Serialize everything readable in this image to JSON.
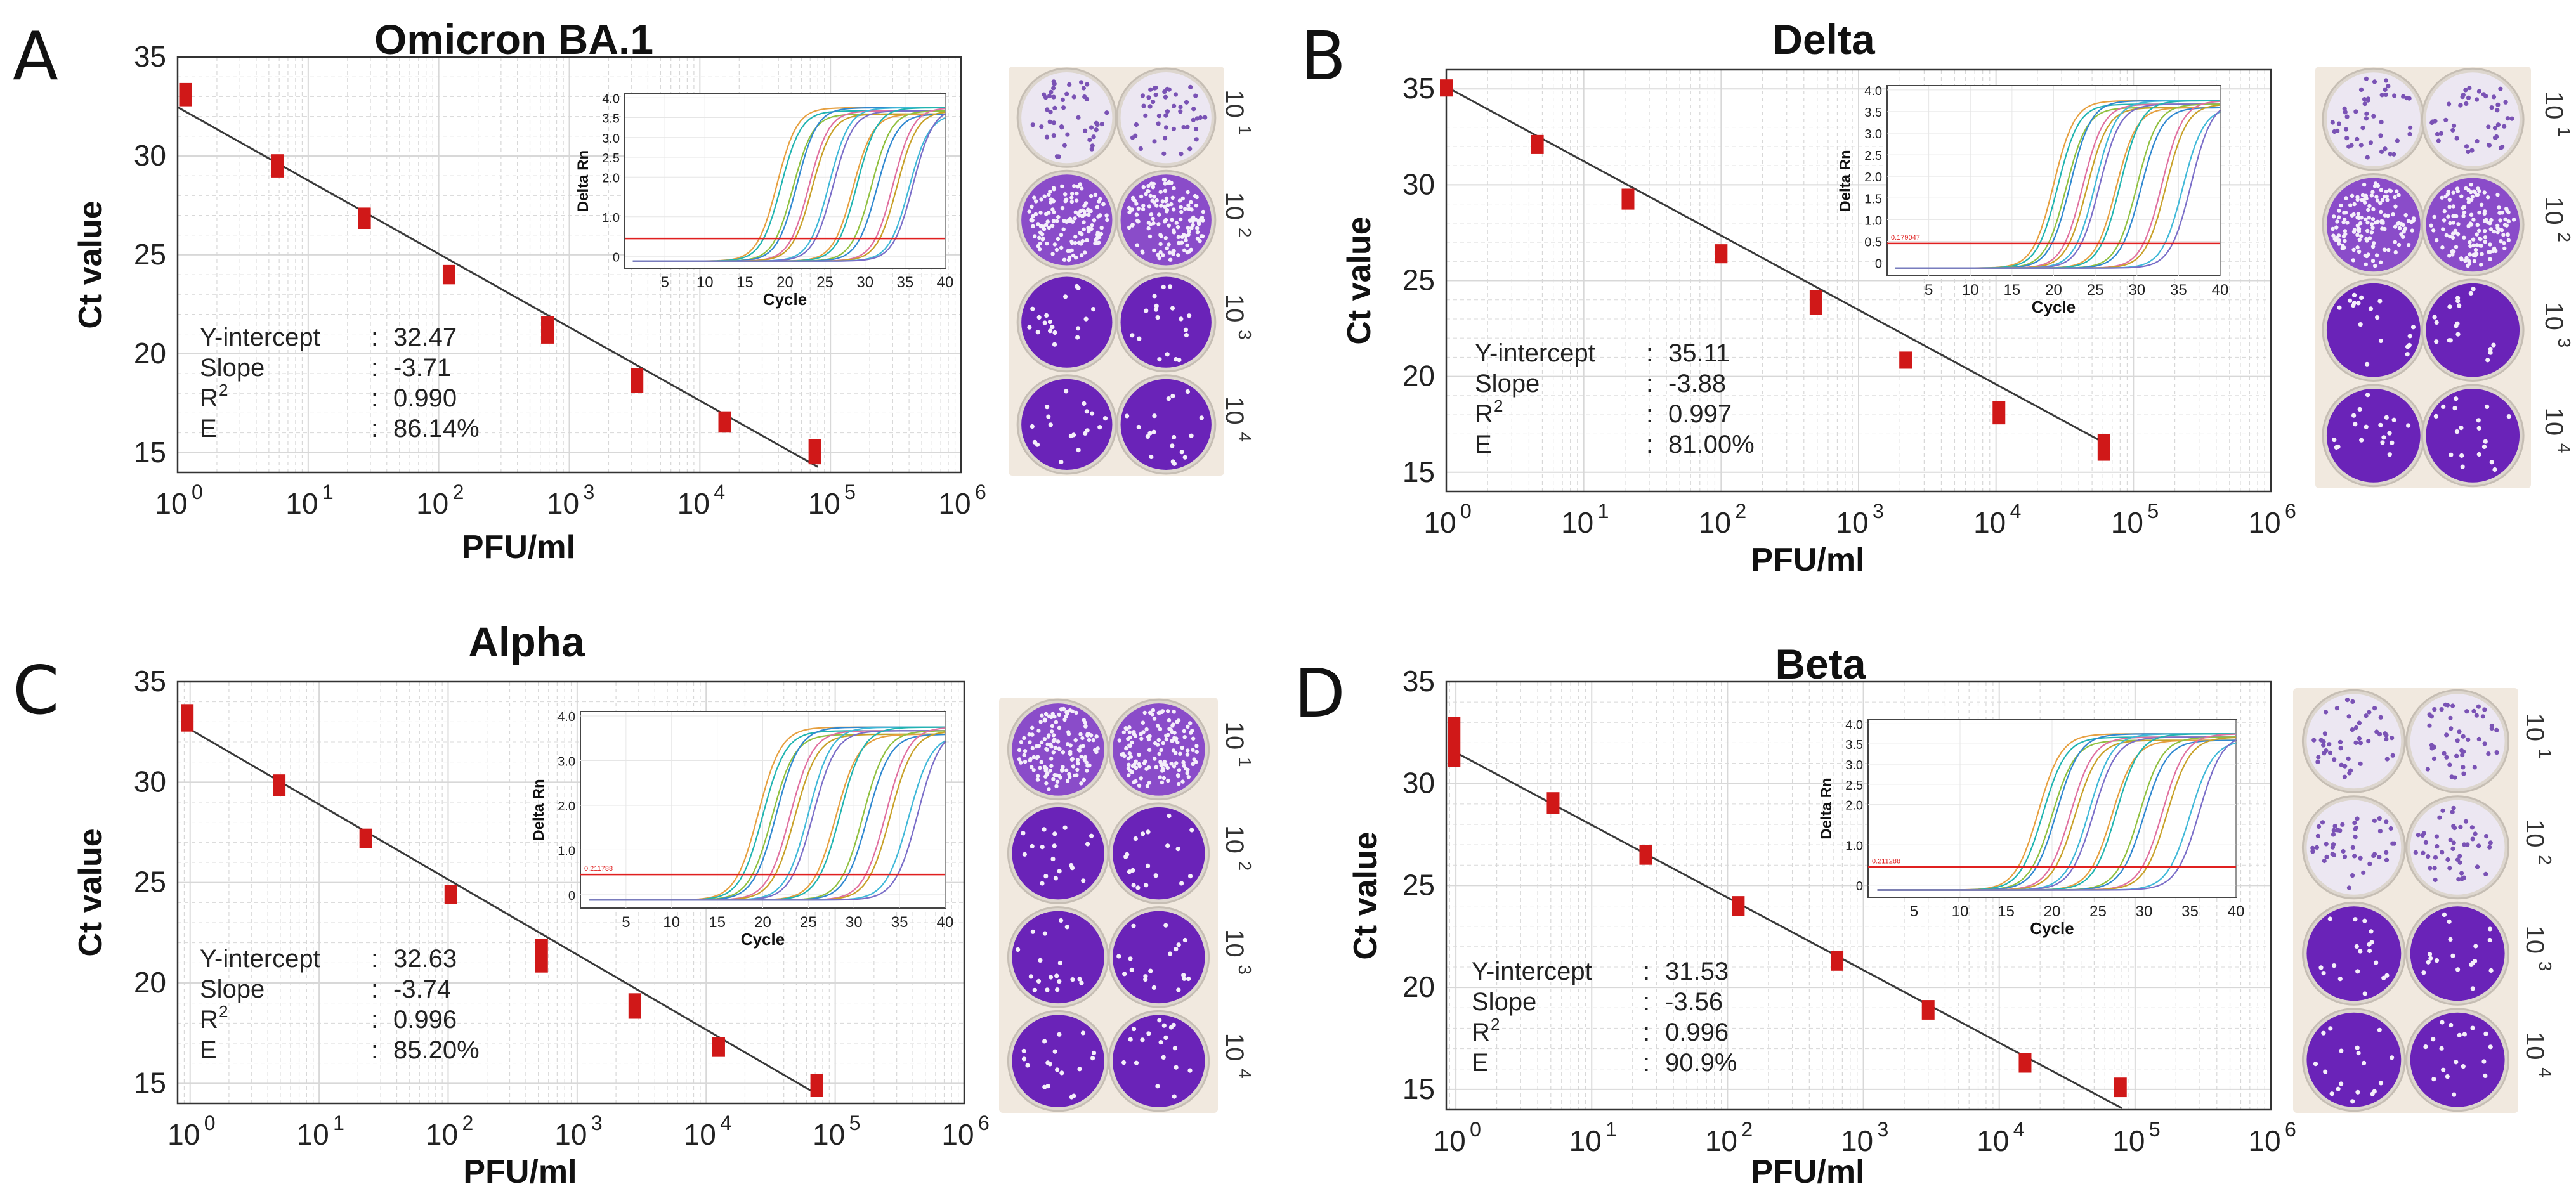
{
  "colors": {
    "fit_line": "#3a3a3a",
    "marker": "#d01818",
    "threshold": "#e02020",
    "grid": "#d8d8d8",
    "plate_bg": "#f1e9df",
    "well_purple": "#6a23b8",
    "well_light": "#ece7f2",
    "amp_curves": [
      "#e6a040",
      "#20b4b0",
      "#90c040",
      "#3088d0",
      "#e070a0",
      "#c8a028",
      "#40b8d8",
      "#7a6ec8"
    ]
  },
  "chart_data": [
    {
      "type": "scatter",
      "panel": "A",
      "title": "Omicron BA.1",
      "xlabel": "PFU/ml",
      "ylabel": "Ct value",
      "xscale": "log10",
      "xlim": [
        1,
        1000000
      ],
      "ylim": [
        14,
        35
      ],
      "y_ticks": [
        "35",
        "30",
        "25",
        "20",
        "15"
      ],
      "x_ticks": [
        {
          "base": "10",
          "exp": "0"
        },
        {
          "base": "10",
          "exp": "1"
        },
        {
          "base": "10",
          "exp": "2"
        },
        {
          "base": "10",
          "exp": "3"
        },
        {
          "base": "10",
          "exp": "4"
        },
        {
          "base": "10",
          "exp": "5"
        },
        {
          "base": "10",
          "exp": "6"
        }
      ],
      "x": [
        1.15,
        5.8,
        27,
        120,
        680,
        3300,
        15500,
        76000
      ],
      "y_pairs": [
        [
          32.8,
          33.4
        ],
        [
          29.2,
          29.8
        ],
        [
          26.6,
          27.1
        ],
        [
          23.8,
          24.2
        ],
        [
          20.8,
          21.6
        ],
        [
          18.3,
          19.0
        ],
        [
          16.3,
          16.8
        ],
        [
          14.7,
          15.4
        ]
      ],
      "fit": {
        "y_intercept": 32.47,
        "slope": -3.71,
        "x_range": [
          1,
          80000
        ]
      },
      "stats": [
        {
          "label": "Y-intercept",
          "sep": ":",
          "value": "32.47"
        },
        {
          "label": "Slope",
          "sep": ":",
          "value": "-3.71"
        },
        {
          "label": "R",
          "sup": "2",
          "sep": ":",
          "value": "0.990"
        },
        {
          "label": "E",
          "sep": ":",
          "value": "86.14%"
        }
      ],
      "inset": {
        "ylabel": "Delta Rn",
        "xlabel": "Cycle",
        "xlim": [
          0,
          40
        ],
        "ylim": [
          -0.3,
          4.1
        ],
        "x_ticks": [
          "5",
          "10",
          "15",
          "20",
          "25",
          "30",
          "35",
          "40"
        ],
        "y_ticks": [
          "0",
          "1.0",
          "2.0",
          "2.5",
          "3.0",
          "3.5",
          "4.0"
        ],
        "threshold": 0.45,
        "threshold_label": "",
        "curve_midpoints": [
          19,
          19.5,
          21,
          21.5,
          23,
          23.4,
          25.5,
          26,
          28.5,
          29,
          30.8,
          31.5,
          33.5,
          34,
          35.5,
          36
        ],
        "plateau": 3.75
      },
      "plate": {
        "exponents": [
          "1",
          "2",
          "3",
          "4"
        ],
        "base": "10",
        "well_styles": [
          "light",
          "dense",
          "purple",
          "purple"
        ]
      }
    },
    {
      "type": "scatter",
      "panel": "B",
      "title": "Delta",
      "xlabel": "PFU/ml",
      "ylabel": "Ct value",
      "xscale": "log10",
      "xlim": [
        1,
        1000000
      ],
      "ylim": [
        14,
        36
      ],
      "y_ticks": [
        "35",
        "30",
        "25",
        "20",
        "15"
      ],
      "x_ticks": [
        {
          "base": "10",
          "exp": "0"
        },
        {
          "base": "10",
          "exp": "1"
        },
        {
          "base": "10",
          "exp": "2"
        },
        {
          "base": "10",
          "exp": "3"
        },
        {
          "base": "10",
          "exp": "4"
        },
        {
          "base": "10",
          "exp": "5"
        },
        {
          "base": "10",
          "exp": "6"
        }
      ],
      "x": [
        1.0,
        4.6,
        21,
        100,
        490,
        2200,
        10500,
        61000
      ],
      "y_pairs": [
        [
          34.9,
          35.2
        ],
        [
          31.9,
          32.3
        ],
        [
          29.0,
          29.5
        ],
        [
          26.2,
          26.6
        ],
        [
          23.5,
          24.2
        ],
        [
          20.7,
          21.0
        ],
        [
          17.8,
          18.4
        ],
        [
          15.9,
          16.7
        ]
      ],
      "fit": {
        "y_intercept": 35.11,
        "slope": -3.88,
        "x_range": [
          1,
          62000
        ]
      },
      "stats": [
        {
          "label": "Y-intercept",
          "sep": ":",
          "value": "35.11"
        },
        {
          "label": "Slope",
          "sep": ":",
          "value": "-3.88"
        },
        {
          "label": "R",
          "sup": "2",
          "sep": ":",
          "value": "0.997"
        },
        {
          "label": "E",
          "sep": ":",
          "value": "81.00%"
        }
      ],
      "inset": {
        "ylabel": "Delta Rn",
        "xlabel": "Cycle",
        "xlim": [
          0,
          40
        ],
        "ylim": [
          -0.3,
          4.1
        ],
        "x_ticks": [
          "5",
          "10",
          "15",
          "20",
          "25",
          "30",
          "35",
          "40"
        ],
        "y_ticks": [
          "0",
          "0.5",
          "1.0",
          "1.5",
          "2.0",
          "2.5",
          "3.0",
          "3.5",
          "4.0"
        ],
        "threshold": 0.45,
        "threshold_label": "0.179047",
        "curve_midpoints": [
          20,
          20.5,
          21.5,
          22,
          23.5,
          24,
          25,
          25.5,
          27.5,
          28,
          30,
          30.5,
          33,
          33.5,
          35.5,
          36.5
        ],
        "plateau": 3.75
      },
      "plate": {
        "exponents": [
          "1",
          "2",
          "3",
          "4"
        ],
        "base": "10",
        "well_styles": [
          "light",
          "dense",
          "purple",
          "purple"
        ]
      }
    },
    {
      "type": "scatter",
      "panel": "C",
      "title": "Alpha",
      "xlabel": "PFU/ml",
      "ylabel": "Ct value",
      "xscale": "log10",
      "xlim": [
        0.8,
        1000000
      ],
      "ylim": [
        14,
        35
      ],
      "y_ticks": [
        "35",
        "30",
        "25",
        "20",
        "15"
      ],
      "x_ticks": [
        {
          "base": "10",
          "exp": "0"
        },
        {
          "base": "10",
          "exp": "1"
        },
        {
          "base": "10",
          "exp": "2"
        },
        {
          "base": "10",
          "exp": "3"
        },
        {
          "base": "10",
          "exp": "4"
        },
        {
          "base": "10",
          "exp": "5"
        },
        {
          "base": "10",
          "exp": "6"
        }
      ],
      "x": [
        0.95,
        4.9,
        23,
        105,
        530,
        2800,
        12500,
        72000
      ],
      "y_pairs": [
        [
          32.8,
          33.6
        ],
        [
          29.6,
          30.1
        ],
        [
          27.0,
          27.4
        ],
        [
          24.2,
          24.6
        ],
        [
          20.8,
          21.9
        ],
        [
          18.5,
          19.2
        ],
        [
          16.6,
          17.0
        ],
        [
          14.6,
          15.2
        ]
      ],
      "fit": {
        "y_intercept": 32.63,
        "slope": -3.74,
        "x_range": [
          0.9,
          75000
        ]
      },
      "stats": [
        {
          "label": "Y-intercept",
          "sep": ":",
          "value": "32.63"
        },
        {
          "label": "Slope",
          "sep": ":",
          "value": "-3.74"
        },
        {
          "label": "R",
          "sup": "2",
          "sep": ":",
          "value": "0.996"
        },
        {
          "label": "E",
          "sep": ":",
          "value": "85.20%"
        }
      ],
      "inset": {
        "ylabel": "Delta Rn",
        "xlabel": "Cycle",
        "xlim": [
          0,
          40
        ],
        "ylim": [
          -0.3,
          4.1
        ],
        "x_ticks": [
          "5",
          "10",
          "15",
          "20",
          "25",
          "30",
          "35",
          "40"
        ],
        "y_ticks": [
          "0",
          "1.0",
          "2.0",
          "3.0",
          "4.0"
        ],
        "threshold": 0.45,
        "threshold_label": "0.211788",
        "curve_midpoints": [
          19.5,
          20,
          21,
          21.5,
          23,
          23.5,
          25,
          25.5,
          28,
          28.5,
          31,
          31.5,
          33.5,
          34,
          36,
          37
        ],
        "plateau": 3.75
      },
      "plate": {
        "exponents": [
          "1",
          "2",
          "3",
          "4"
        ],
        "base": "10",
        "well_styles": [
          "dense",
          "purple",
          "purple",
          "purple"
        ]
      }
    },
    {
      "type": "scatter",
      "panel": "D",
      "title": "Beta",
      "xlabel": "PFU/ml",
      "ylabel": "Ct value",
      "xscale": "log10",
      "xlim": [
        0.85,
        1000000
      ],
      "ylim": [
        14,
        35
      ],
      "y_ticks": [
        "35",
        "30",
        "25",
        "20",
        "15"
      ],
      "x_ticks": [
        {
          "base": "10",
          "exp": "0"
        },
        {
          "base": "10",
          "exp": "1"
        },
        {
          "base": "10",
          "exp": "2"
        },
        {
          "base": "10",
          "exp": "3"
        },
        {
          "base": "10",
          "exp": "4"
        },
        {
          "base": "10",
          "exp": "5"
        },
        {
          "base": "10",
          "exp": "6"
        }
      ],
      "x": [
        0.97,
        5.2,
        25,
        120,
        640,
        3000,
        15500,
        78000
      ],
      "y_pairs": [
        [
          31.1,
          33.0
        ],
        [
          28.8,
          29.3
        ],
        [
          26.3,
          26.7
        ],
        [
          23.8,
          24.2
        ],
        [
          21.1,
          21.5
        ],
        [
          18.7,
          19.1
        ],
        [
          16.1,
          16.5
        ],
        [
          14.9,
          15.3
        ]
      ],
      "fit": {
        "y_intercept": 31.53,
        "slope": -3.56,
        "x_range": [
          0.9,
          80000
        ]
      },
      "stats": [
        {
          "label": "Y-intercept",
          "sep": ":",
          "value": "31.53"
        },
        {
          "label": "Slope",
          "sep": ":",
          "value": "-3.56"
        },
        {
          "label": "R",
          "sup": "2",
          "sep": ":",
          "value": "0.996"
        },
        {
          "label": "E",
          "sep": ":",
          "value": "90.9%"
        }
      ],
      "inset": {
        "ylabel": "Delta Rn",
        "xlabel": "Cycle",
        "xlim": [
          0,
          40
        ],
        "ylim": [
          -0.3,
          4.1
        ],
        "x_ticks": [
          "5",
          "10",
          "15",
          "20",
          "25",
          "30",
          "35",
          "40"
        ],
        "y_ticks": [
          "0",
          "1.0",
          "2.0",
          "2.5",
          "3.0",
          "3.5",
          "4.0"
        ],
        "threshold": 0.45,
        "threshold_label": "0.211288",
        "curve_midpoints": [
          18.5,
          19,
          20,
          20.5,
          22,
          22.5,
          24,
          24.5,
          26.5,
          27,
          29.5,
          30,
          32,
          32.5,
          35,
          36
        ],
        "plateau": 3.75
      },
      "plate": {
        "exponents": [
          "1",
          "2",
          "3",
          "4"
        ],
        "base": "10",
        "well_styles": [
          "light",
          "light",
          "purple",
          "purple"
        ]
      }
    }
  ]
}
